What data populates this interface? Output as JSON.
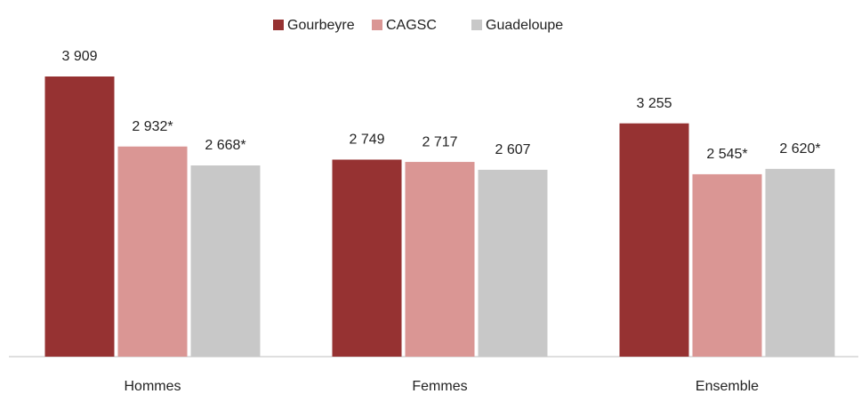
{
  "chart_data": {
    "type": "bar",
    "categories": [
      "Hommes",
      "Femmes",
      "Ensemble"
    ],
    "series": [
      {
        "name": "Gourbeyre",
        "color": "#963232",
        "values": [
          3909,
          2749,
          3255
        ],
        "value_labels": [
          "3 909",
          "2 749",
          "3 255"
        ]
      },
      {
        "name": "CAGSC",
        "color": "#da9694",
        "values": [
          2932,
          2717,
          2545
        ],
        "value_labels": [
          "2 932*",
          "2 717",
          "2 545*"
        ]
      },
      {
        "name": "Guadeloupe",
        "color": "#c8c8c8",
        "values": [
          2668,
          2607,
          2620
        ],
        "value_labels": [
          "2 668*",
          "2 607",
          "2 620*"
        ]
      }
    ],
    "legend": "top"
  }
}
